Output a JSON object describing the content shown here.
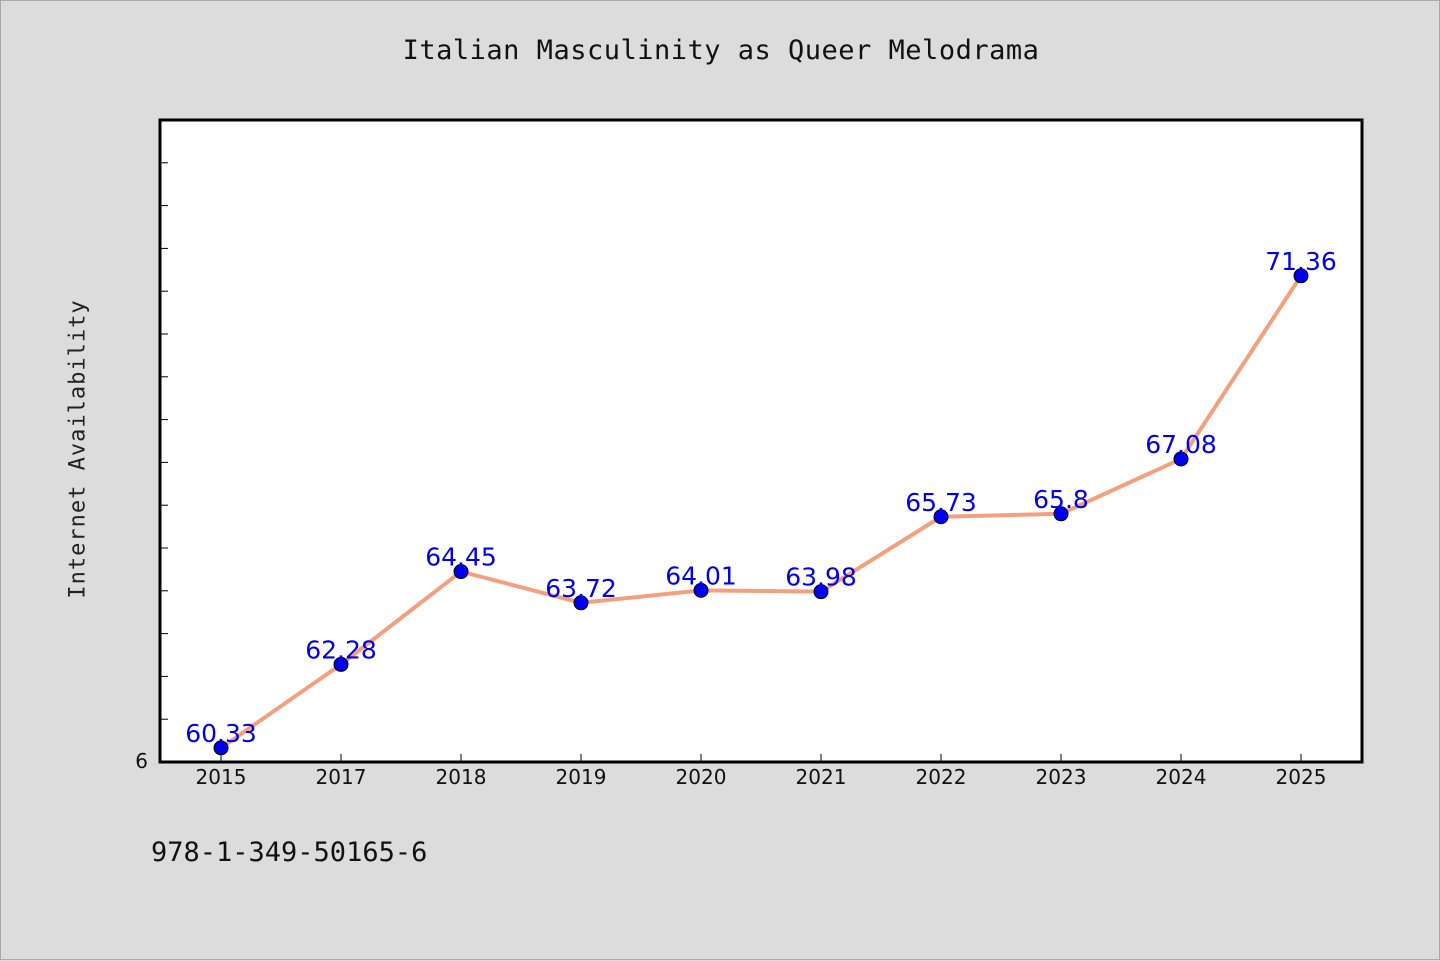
{
  "chart_data": {
    "type": "line",
    "title": "Italian Masculinity as Queer Melodrama",
    "xlabel": "",
    "ylabel": "Internet Availability",
    "categories": [
      "2015",
      "2017",
      "2018",
      "2019",
      "2020",
      "2021",
      "2022",
      "2023",
      "2024",
      "2025"
    ],
    "series": [
      {
        "values": [
          60.33,
          62.28,
          64.45,
          63.72,
          64.01,
          63.98,
          65.73,
          65.8,
          67.08,
          71.36
        ],
        "labels": [
          "60.33",
          "62.28",
          "64.45",
          "63.72",
          "64.01",
          "63.98",
          "65.73",
          "65.8",
          "67.08",
          "71.36"
        ],
        "line_color": "#f4a07e",
        "marker_color": "#0000ee",
        "label_color": "#0000ee"
      }
    ],
    "ylim": [
      60,
      75
    ],
    "y_tick_label": "6",
    "grid": false,
    "legend": "none"
  },
  "footnote": "978-1-349-50165-6"
}
